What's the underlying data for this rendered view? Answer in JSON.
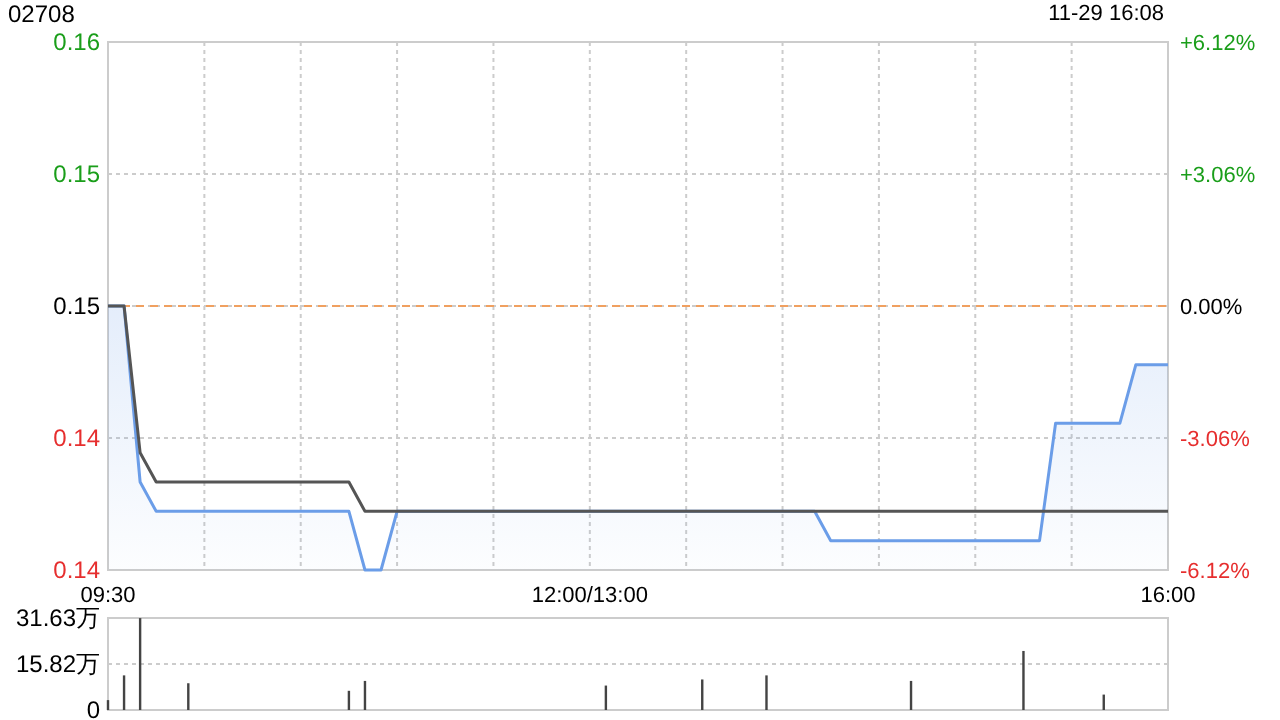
{
  "chart_data": [
    {
      "type": "line",
      "title": "02708",
      "annotations": [
        "11-29 16:08"
      ],
      "categories": [
        "09:30",
        null,
        null,
        null,
        null,
        null,
        null,
        null,
        null,
        null,
        null,
        null,
        null,
        null,
        null,
        null,
        null,
        null,
        null,
        null,
        null,
        null,
        null,
        null,
        null,
        null,
        null,
        null,
        null,
        null,
        "12:00/13:00",
        null,
        null,
        null,
        null,
        null,
        null,
        null,
        null,
        null,
        null,
        null,
        null,
        null,
        null,
        null,
        null,
        null,
        null,
        null,
        null,
        null,
        null,
        null,
        null,
        null,
        null,
        null,
        null,
        null,
        null,
        null,
        null,
        null,
        null,
        null,
        "16:00"
      ],
      "ylim": [
        0.138,
        0.156
      ],
      "yticks": [
        {
          "value": 0.156,
          "label": "0.16"
        },
        {
          "value": 0.1515,
          "label": "0.15"
        },
        {
          "value": 0.147,
          "label": "0.15"
        },
        {
          "value": 0.1425,
          "label": "0.14"
        },
        {
          "value": 0.138,
          "label": "0.14"
        }
      ],
      "y2lim": [
        -6.12,
        6.12
      ],
      "y2ticks": [
        {
          "value": 6.12,
          "label": "+6.12%"
        },
        {
          "value": 3.06,
          "label": "+3.06%"
        },
        {
          "value": 0,
          "label": "0.00%"
        },
        {
          "value": -3.06,
          "label": "-3.06%"
        },
        {
          "value": -6.12,
          "label": "-6.12%"
        }
      ],
      "grid": true,
      "ref_lines": [
        {
          "axis": "y",
          "value": 0.147,
          "label": null,
          "color": "#f0a060",
          "line_style": "dashed"
        }
      ],
      "series": [
        {
          "type": "area",
          "color": "#6b9de8",
          "values": [
            0.147,
            0.147,
            0.141,
            0.14,
            0.14,
            0.14,
            0.14,
            0.14,
            0.14,
            0.14,
            0.14,
            0.14,
            0.14,
            0.14,
            0.14,
            0.14,
            0.138,
            0.138,
            0.14,
            0.14,
            0.14,
            0.14,
            0.14,
            0.14,
            0.14,
            0.14,
            0.14,
            0.14,
            0.14,
            0.14,
            0.14,
            0.14,
            0.14,
            0.14,
            0.14,
            0.14,
            0.14,
            0.14,
            0.14,
            0.14,
            0.14,
            0.14,
            0.14,
            0.14,
            0.14,
            0.139,
            0.139,
            0.139,
            0.139,
            0.139,
            0.139,
            0.139,
            0.139,
            0.139,
            0.139,
            0.139,
            0.139,
            0.139,
            0.139,
            0.143,
            0.143,
            0.143,
            0.143,
            0.143,
            0.145,
            0.145,
            0.145
          ]
        },
        {
          "color": "#555555",
          "values": [
            0.147,
            0.147,
            0.142,
            0.141,
            0.141,
            0.141,
            0.141,
            0.141,
            0.141,
            0.141,
            0.141,
            0.141,
            0.141,
            0.141,
            0.141,
            0.141,
            0.14,
            0.14,
            0.14,
            0.14,
            0.14,
            0.14,
            0.14,
            0.14,
            0.14,
            0.14,
            0.14,
            0.14,
            0.14,
            0.14,
            0.14,
            0.14,
            0.14,
            0.14,
            0.14,
            0.14,
            0.14,
            0.14,
            0.14,
            0.14,
            0.14,
            0.14,
            0.14,
            0.14,
            0.14,
            0.14,
            0.14,
            0.14,
            0.14,
            0.14,
            0.14,
            0.14,
            0.14,
            0.14,
            0.14,
            0.14,
            0.14,
            0.14,
            0.14,
            0.14,
            0.14,
            0.14,
            0.14,
            0.14,
            0.14,
            0.14,
            0.14
          ]
        }
      ]
    },
    {
      "type": "bar",
      "color": "#444444",
      "tick_labels": "y",
      "grid": "y",
      "categories": [
        null,
        null,
        null,
        null,
        null,
        null,
        null,
        null,
        null,
        null,
        null,
        null,
        null,
        null,
        null,
        null,
        null,
        null,
        null,
        null,
        null,
        null,
        null,
        null,
        null,
        null,
        null,
        null,
        null,
        null,
        null,
        null,
        null,
        null,
        null,
        null,
        null,
        null,
        null,
        null,
        null,
        null,
        null,
        null,
        null,
        null,
        null,
        null,
        null,
        null,
        null,
        null,
        null,
        null,
        null,
        null,
        null,
        null,
        null,
        null,
        null,
        null,
        null,
        null,
        null,
        null,
        null
      ],
      "ylim": [
        0,
        31.63
      ],
      "yticks": [
        {
          "value": 0,
          "label": "0"
        },
        {
          "value": 15.82,
          "label": "15.82万"
        },
        {
          "value": 31.63,
          "label": "31.63万"
        }
      ],
      "values": [
        3.4,
        11.9,
        31.6,
        null,
        null,
        9.2,
        null,
        null,
        null,
        null,
        null,
        null,
        null,
        null,
        null,
        6.6,
        10.0,
        null,
        null,
        null,
        null,
        null,
        null,
        null,
        null,
        null,
        null,
        null,
        null,
        null,
        null,
        8.4,
        null,
        null,
        null,
        null,
        null,
        10.5,
        null,
        null,
        null,
        11.9,
        null,
        null,
        null,
        null,
        null,
        null,
        null,
        null,
        10.0,
        null,
        null,
        null,
        null,
        null,
        null,
        20.3,
        null,
        null,
        null,
        null,
        5.3,
        null,
        null,
        null,
        null
      ]
    }
  ]
}
